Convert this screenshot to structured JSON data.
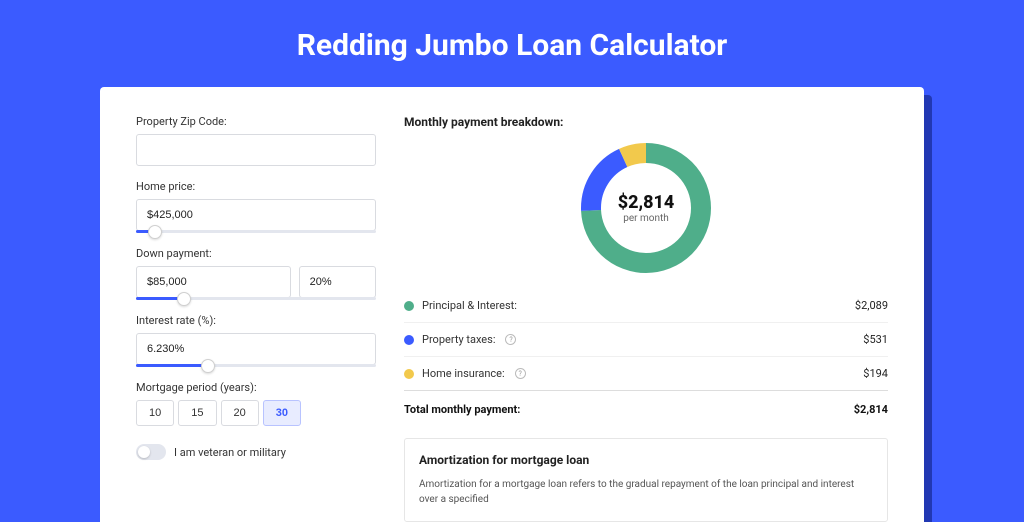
{
  "page": {
    "title": "Redding Jumbo Loan Calculator",
    "background_color": "#3B5BFF",
    "card_background": "#ffffff"
  },
  "form": {
    "zip": {
      "label": "Property Zip Code:",
      "value": ""
    },
    "home_price": {
      "label": "Home price:",
      "value": "$425,000",
      "slider_pct": 8
    },
    "down_payment": {
      "label": "Down payment:",
      "value": "$85,000",
      "pct_value": "20%",
      "slider_pct": 20
    },
    "interest_rate": {
      "label": "Interest rate (%):",
      "value": "6.230%",
      "slider_pct": 30
    },
    "mortgage_period": {
      "label": "Mortgage period (years):",
      "options": [
        "10",
        "15",
        "20",
        "30"
      ],
      "active": "30"
    },
    "veteran": {
      "label": "I am veteran or military",
      "checked": false
    }
  },
  "breakdown": {
    "title": "Monthly payment breakdown:",
    "donut": {
      "value": "$2,814",
      "sub": "per month",
      "segments": [
        {
          "name": "principal_interest",
          "label": "Principal & Interest:",
          "amount": "$2,089",
          "color": "#4FAE8A",
          "fraction": 0.742
        },
        {
          "name": "property_taxes",
          "label": "Property taxes:",
          "amount": "$531",
          "color": "#3B5BFF",
          "fraction": 0.189,
          "info": true
        },
        {
          "name": "home_insurance",
          "label": "Home insurance:",
          "amount": "$194",
          "color": "#F2C94C",
          "fraction": 0.069,
          "info": true
        }
      ],
      "stroke_width": 20,
      "radius": 55
    },
    "total": {
      "label": "Total monthly payment:",
      "amount": "$2,814"
    }
  },
  "amortization": {
    "title": "Amortization for mortgage loan",
    "text": "Amortization for a mortgage loan refers to the gradual repayment of the loan principal and interest over a specified"
  }
}
